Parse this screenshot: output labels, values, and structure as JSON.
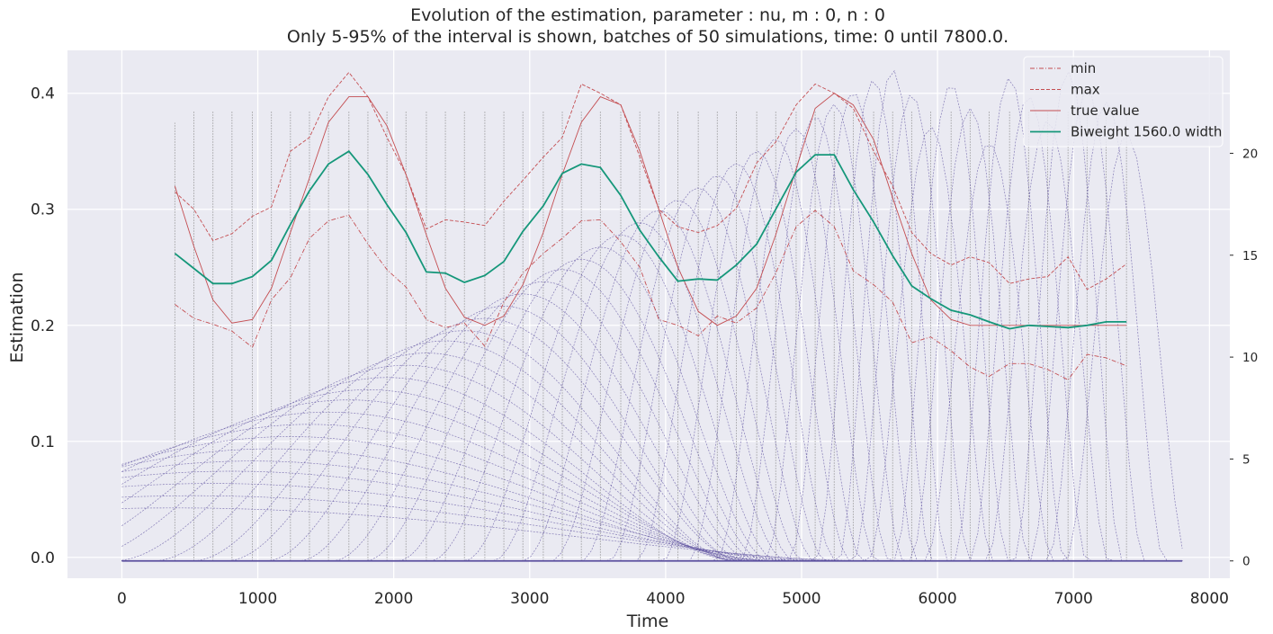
{
  "chart_data": {
    "type": "line",
    "title_line1": "Evolution of the estimation, parameter : nu, m : 0, n : 0",
    "title_line2": "Only 5-95% of the interval is shown, batches of 50 simulations, time: 0 until 7800.0.",
    "xlabel": "Time",
    "ylabel": "Estimation",
    "xlim": [
      -400,
      8150
    ],
    "ylim": [
      -0.018,
      0.437
    ],
    "y2lim": [
      -0.85,
      25.05
    ],
    "xticks": [
      "0",
      "1000",
      "2000",
      "3000",
      "4000",
      "5000",
      "6000",
      "7000",
      "8000"
    ],
    "xtick_values": [
      0,
      1000,
      2000,
      3000,
      4000,
      5000,
      6000,
      7000,
      8000
    ],
    "yticks": [
      "0.0",
      "0.1",
      "0.2",
      "0.3",
      "0.4"
    ],
    "ytick_values": [
      0,
      0.1,
      0.2,
      0.3,
      0.4
    ],
    "y2ticks": [
      "0",
      "5",
      "10",
      "15",
      "20"
    ],
    "y2tick_values": [
      0,
      5,
      10,
      15,
      20
    ],
    "grid": true,
    "legend_position": "top-right",
    "colors": {
      "background": "#eaeaf2",
      "grid": "#ffffff",
      "min": "#c44e52",
      "max": "#c44e52",
      "true_value": "#c44e52",
      "biweight": "#15977a",
      "kernels": "#5b4f9e",
      "vertical": "#8a8a8a"
    },
    "legend": [
      {
        "label": "min",
        "key": "min"
      },
      {
        "label": "max",
        "key": "max"
      },
      {
        "label": "true value",
        "key": "true_value"
      },
      {
        "label": "Biweight 1560.0 width",
        "key": "biweight"
      }
    ],
    "x": [
      390,
      530,
      670,
      810,
      960,
      1100,
      1240,
      1380,
      1520,
      1670,
      1810,
      1950,
      2090,
      2240,
      2380,
      2520,
      2670,
      2810,
      2950,
      3100,
      3240,
      3380,
      3520,
      3670,
      3810,
      3950,
      4090,
      4240,
      4380,
      4520,
      4670,
      4810,
      4960,
      5100,
      5240,
      5380,
      5530,
      5670,
      5810,
      5950,
      6100,
      6240,
      6380,
      6530,
      6670,
      6810,
      6960,
      7100,
      7240,
      7390
    ],
    "series": [
      {
        "name": "min",
        "key": "min",
        "values": [
          0.218,
          0.206,
          0.201,
          0.195,
          0.181,
          0.222,
          0.241,
          0.275,
          0.29,
          0.295,
          0.27,
          0.248,
          0.233,
          0.205,
          0.198,
          0.202,
          0.182,
          0.22,
          0.245,
          0.262,
          0.275,
          0.29,
          0.291,
          0.272,
          0.25,
          0.205,
          0.2,
          0.191,
          0.208,
          0.202,
          0.215,
          0.245,
          0.285,
          0.299,
          0.285,
          0.247,
          0.235,
          0.22,
          0.185,
          0.19,
          0.178,
          0.164,
          0.156,
          0.167,
          0.167,
          0.162,
          0.153,
          0.175,
          0.172,
          0.165
        ]
      },
      {
        "name": "max",
        "key": "max",
        "values": [
          0.315,
          0.3,
          0.273,
          0.279,
          0.294,
          0.302,
          0.35,
          0.362,
          0.397,
          0.418,
          0.397,
          0.362,
          0.33,
          0.283,
          0.291,
          0.289,
          0.286,
          0.307,
          0.325,
          0.345,
          0.362,
          0.408,
          0.4,
          0.39,
          0.345,
          0.3,
          0.285,
          0.28,
          0.286,
          0.301,
          0.34,
          0.358,
          0.39,
          0.408,
          0.4,
          0.387,
          0.35,
          0.32,
          0.28,
          0.262,
          0.252,
          0.259,
          0.254,
          0.236,
          0.24,
          0.242,
          0.259,
          0.231,
          0.24,
          0.253
        ]
      },
      {
        "name": "true value",
        "key": "true_value",
        "values": [
          0.32,
          0.268,
          0.222,
          0.202,
          0.205,
          0.232,
          0.28,
          0.327,
          0.375,
          0.397,
          0.397,
          0.372,
          0.33,
          0.278,
          0.232,
          0.207,
          0.2,
          0.208,
          0.235,
          0.28,
          0.33,
          0.375,
          0.397,
          0.39,
          0.35,
          0.3,
          0.25,
          0.212,
          0.2,
          0.208,
          0.232,
          0.278,
          0.335,
          0.387,
          0.4,
          0.39,
          0.36,
          0.31,
          0.262,
          0.222,
          0.205,
          0.2,
          0.2,
          0.2,
          0.2,
          0.2,
          0.2,
          0.2,
          0.2,
          0.2
        ]
      },
      {
        "name": "Biweight 1560.0 width",
        "key": "biweight",
        "values": [
          0.262,
          0.249,
          0.236,
          0.236,
          0.242,
          0.256,
          0.287,
          0.316,
          0.339,
          0.35,
          0.33,
          0.304,
          0.28,
          0.246,
          0.245,
          0.237,
          0.243,
          0.255,
          0.281,
          0.303,
          0.331,
          0.339,
          0.336,
          0.312,
          0.282,
          0.259,
          0.238,
          0.24,
          0.239,
          0.252,
          0.27,
          0.3,
          0.332,
          0.347,
          0.347,
          0.317,
          0.289,
          0.26,
          0.234,
          0.223,
          0.213,
          0.209,
          0.203,
          0.197,
          0.2,
          0.199,
          0.198,
          0.2,
          0.203,
          0.203
        ]
      }
    ],
    "kernel_peaks": [
      2.6,
      3.2,
      3.8,
      4.4,
      4.9,
      5.5,
      6.1,
      6.7,
      7.3,
      7.9,
      8.4,
      9.0,
      9.6,
      10.2,
      10.8,
      11.3,
      11.9,
      12.5,
      13.1,
      13.7,
      14.3,
      14.8,
      15.4,
      16.0,
      16.6,
      17.2,
      17.7,
      18.3,
      18.9,
      19.5,
      20.1,
      20.7,
      21.2,
      21.8,
      22.4,
      23.0,
      23.6,
      24.1,
      22.9,
      21.3,
      23.4,
      22.2,
      20.5,
      23.7,
      22.8,
      21.6,
      24.0,
      23.1,
      22.5,
      20.9
    ],
    "kernel_widths": [
      5200,
      4900,
      4600,
      4300,
      4100,
      3800,
      3600,
      3400,
      3200,
      3000,
      2800,
      2600,
      2450,
      2300,
      2150,
      2000,
      1900,
      1750,
      1650,
      1550,
      1450,
      1350,
      1250,
      1150,
      1080,
      1000,
      930,
      860,
      800,
      740,
      690,
      640,
      590,
      550,
      510,
      470,
      430,
      400,
      430,
      460,
      420,
      440,
      470,
      410,
      430,
      450,
      400,
      420,
      430,
      450
    ],
    "vertical_tick_top": 22.1
  }
}
